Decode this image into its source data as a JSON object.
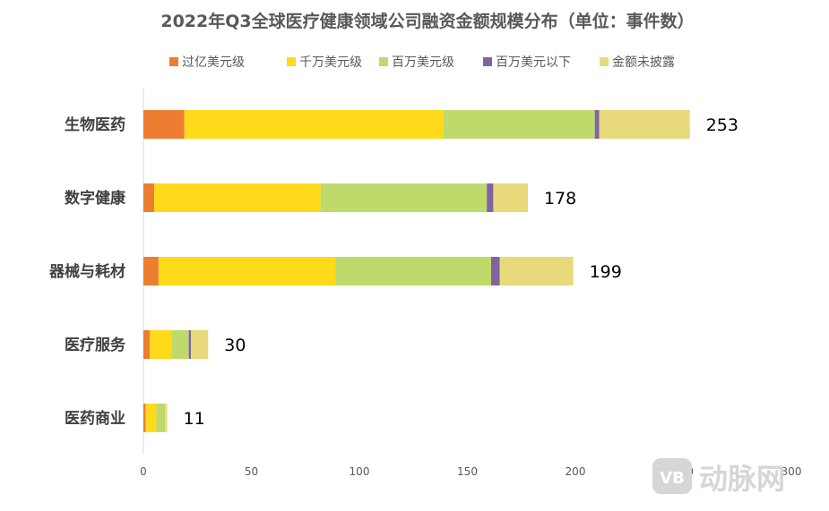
{
  "chart_data": {
    "type": "bar",
    "orientation": "horizontal",
    "stacked": true,
    "title": "2022年Q3全球医疗健康领域公司融资金额规模分布（单位：事件数）",
    "categories": [
      "生物医药",
      "数字健康",
      "器械与耗材",
      "医疗服务",
      "医药商业"
    ],
    "series": [
      {
        "name": "过亿美元级",
        "color": "#ED7D31",
        "values": [
          19,
          5,
          7,
          3,
          1
        ]
      },
      {
        "name": "千万美元级",
        "color": "#FFDA1A",
        "values": [
          120,
          77,
          82,
          10,
          5
        ]
      },
      {
        "name": "百万美元级",
        "color": "#BEDA6B",
        "values": [
          70,
          77,
          72,
          8,
          4
        ]
      },
      {
        "name": "百万美元以下",
        "color": "#8064A2",
        "values": [
          2,
          3,
          4,
          1,
          0
        ]
      },
      {
        "name": "金额未披露",
        "color": "#E8D97A",
        "values": [
          42,
          16,
          34,
          8,
          1
        ]
      }
    ],
    "totals": [
      "253",
      "178",
      "199",
      "30",
      "11"
    ],
    "xlim": [
      0,
      300
    ],
    "xticks": [
      "0",
      "50",
      "100",
      "150",
      "200",
      "250",
      "300"
    ],
    "legend_position": "top",
    "grid": false
  },
  "watermark": {
    "text": "动脉网",
    "logo_text": "VB",
    "color": "#d6d6d6"
  }
}
